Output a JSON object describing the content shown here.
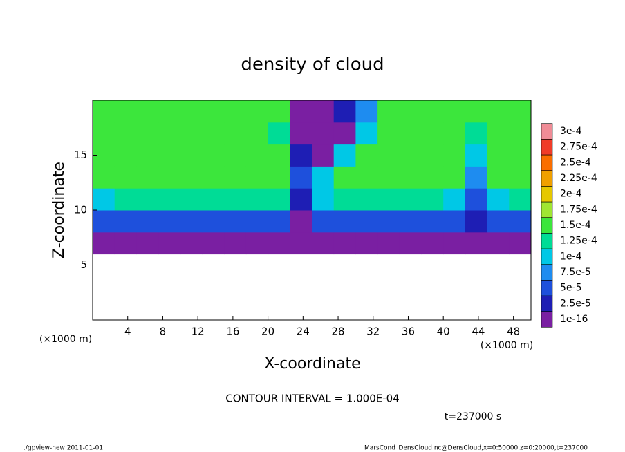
{
  "chart_data": {
    "type": "heatmap",
    "title": "density of cloud",
    "x_label": "X-coordinate",
    "y_label": "Z-coordinate",
    "y_unit_label": "(×1000 m)",
    "x_unit_label": "(×1000 m)",
    "annotation": "CONTOUR INTERVAL = 1.000E-04",
    "time_label": "t=237000 s",
    "footer_left": "./gpview-new   2011-01-01",
    "footer_right": "MarsCond_DensCloud.nc@DensCloud,x=0:50000,z=0:20000,t=237000",
    "xlim": [
      0,
      50
    ],
    "ylim": [
      0,
      20
    ],
    "xticks": [
      4,
      8,
      12,
      16,
      20,
      24,
      28,
      32,
      36,
      40,
      44,
      48
    ],
    "yticks": [
      5,
      10,
      15
    ],
    "x": [
      1.25,
      3.75,
      6.25,
      8.75,
      11.25,
      13.75,
      16.25,
      18.75,
      21.25,
      23.75,
      26.25,
      28.75,
      31.25,
      33.75,
      36.25,
      38.75,
      41.25,
      43.75,
      46.25,
      48.75
    ],
    "y": [
      1,
      3,
      5,
      7,
      9,
      11,
      13,
      15,
      17,
      19
    ],
    "values": [
      [
        null,
        null,
        null,
        null,
        null,
        null,
        null,
        null,
        null,
        null,
        null,
        null,
        null,
        null,
        null,
        null,
        null,
        null,
        null,
        null
      ],
      [
        null,
        null,
        null,
        null,
        null,
        null,
        null,
        null,
        null,
        null,
        null,
        null,
        null,
        null,
        null,
        null,
        null,
        null,
        null,
        null
      ],
      [
        null,
        null,
        null,
        null,
        null,
        null,
        null,
        null,
        null,
        null,
        null,
        null,
        null,
        null,
        null,
        null,
        null,
        null,
        null,
        null
      ],
      [
        1e-16,
        1e-16,
        1e-16,
        1e-16,
        1e-16,
        1e-16,
        1e-16,
        1e-16,
        1e-16,
        1e-16,
        1e-16,
        1e-16,
        1e-16,
        1e-16,
        1e-16,
        1e-16,
        1e-16,
        1e-16,
        1e-16,
        1e-16
      ],
      [
        5e-05,
        5e-05,
        5e-05,
        5e-05,
        5e-05,
        5e-05,
        5e-05,
        5e-05,
        5e-05,
        1e-16,
        5e-05,
        5e-05,
        5e-05,
        5e-05,
        5e-05,
        5e-05,
        5e-05,
        2.5e-05,
        5e-05,
        5e-05
      ],
      [
        0.0001,
        0.000125,
        0.000125,
        0.000125,
        0.000125,
        0.000125,
        0.000125,
        0.000125,
        0.000125,
        2.5e-05,
        0.0001,
        0.000125,
        0.000125,
        0.000125,
        0.000125,
        0.000125,
        0.0001,
        5e-05,
        0.0001,
        0.000125
      ],
      [
        0.00015,
        0.00015,
        0.00015,
        0.00015,
        0.00015,
        0.00015,
        0.00015,
        0.00015,
        0.00015,
        5e-05,
        0.0001,
        0.00015,
        0.00015,
        0.00015,
        0.00015,
        0.00015,
        0.00015,
        7.5e-05,
        0.00015,
        0.00015
      ],
      [
        0.00015,
        0.00015,
        0.00015,
        0.00015,
        0.00015,
        0.00015,
        0.00015,
        0.00015,
        0.00015,
        2.5e-05,
        1e-16,
        0.0001,
        0.00015,
        0.00015,
        0.00015,
        0.00015,
        0.00015,
        0.0001,
        0.00015,
        0.00015
      ],
      [
        0.00015,
        0.00015,
        0.00015,
        0.00015,
        0.00015,
        0.00015,
        0.00015,
        0.00015,
        0.000125,
        1e-16,
        1e-16,
        1e-16,
        0.0001,
        0.00015,
        0.00015,
        0.00015,
        0.00015,
        0.000125,
        0.00015,
        0.00015
      ],
      [
        0.00015,
        0.00015,
        0.00015,
        0.00015,
        0.00015,
        0.00015,
        0.00015,
        0.00015,
        0.00015,
        1e-16,
        1e-16,
        2.5e-05,
        7.5e-05,
        0.00015,
        0.00015,
        0.00015,
        0.00015,
        0.00015,
        0.00015,
        0.00015
      ]
    ],
    "levels": [
      {
        "value": 1e-16,
        "label": "1e-16"
      },
      {
        "value": 2.5e-05,
        "label": "2.5e-5"
      },
      {
        "value": 5e-05,
        "label": "5e-5"
      },
      {
        "value": 7.5e-05,
        "label": "7.5e-5"
      },
      {
        "value": 0.0001,
        "label": "1e-4"
      },
      {
        "value": 0.000125,
        "label": "1.25e-4"
      },
      {
        "value": 0.00015,
        "label": "1.5e-4"
      },
      {
        "value": 0.000175,
        "label": "1.75e-4"
      },
      {
        "value": 0.0002,
        "label": "2e-4"
      },
      {
        "value": 0.000225,
        "label": "2.25e-4"
      },
      {
        "value": 0.00025,
        "label": "2.5e-4"
      },
      {
        "value": 0.000275,
        "label": "2.75e-4"
      },
      {
        "value": 0.0003,
        "label": "3e-4"
      }
    ],
    "colors": [
      "#7a1fa2",
      "#1e1eb4",
      "#1e50dc",
      "#1e8cf0",
      "#00c8e6",
      "#00dc96",
      "#3ce63c",
      "#a0e632",
      "#e6c800",
      "#f0a000",
      "#fa6e00",
      "#f03c28",
      "#f08c96"
    ]
  }
}
